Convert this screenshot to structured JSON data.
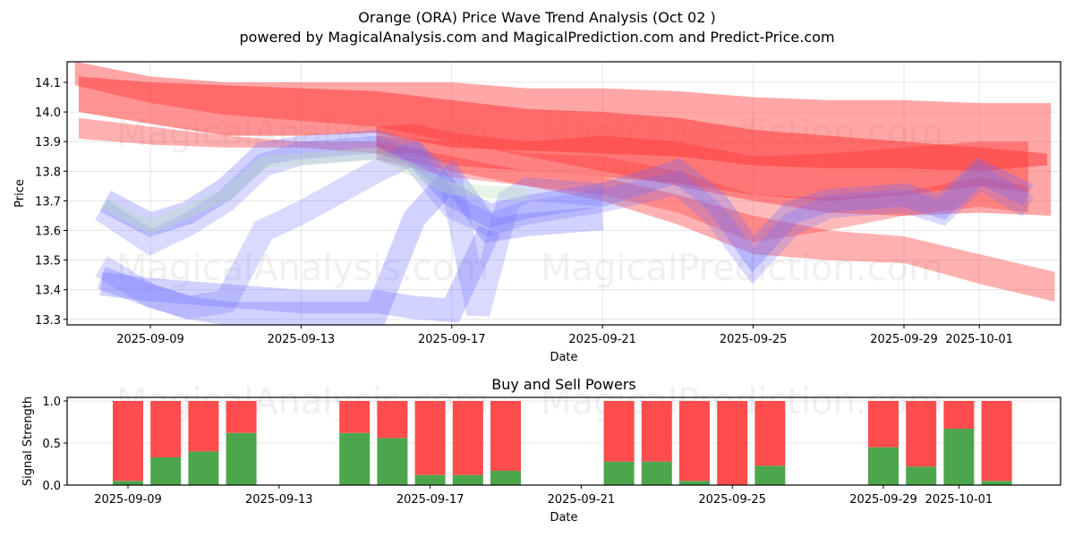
{
  "header": {
    "title": "Orange (ORA) Price Wave Trend Analysis (Oct 02 )",
    "subtitle": "powered by MagicalAnalysis.com and MagicalPrediction.com and Predict-Price.com"
  },
  "watermarks": [
    "MagicalAnalysis.com",
    "MagicalPrediction.com"
  ],
  "chart_data": [
    {
      "type": "area",
      "title": "",
      "xlabel": "Date",
      "ylabel": "Price",
      "x_origin_date": "2025-09-09",
      "x_unit": "days since 2025-09-09",
      "xlim": [
        -2.2,
        24.2
      ],
      "ylim": [
        13.28,
        14.17
      ],
      "grid": true,
      "x_ticks": [
        {
          "day": 0,
          "label": "2025-09-09"
        },
        {
          "day": 4,
          "label": "2025-09-13"
        },
        {
          "day": 8,
          "label": "2025-09-17"
        },
        {
          "day": 12,
          "label": "2025-09-21"
        },
        {
          "day": 16,
          "label": "2025-09-25"
        },
        {
          "day": 20,
          "label": "2025-09-29"
        },
        {
          "day": 22,
          "label": "2025-10-01"
        }
      ],
      "y_ticks": [
        13.3,
        13.4,
        13.5,
        13.6,
        13.7,
        13.8,
        13.9,
        14.0,
        14.1
      ],
      "colors": {
        "sell": "#ff3b3b",
        "buy": "#6b6bff",
        "neutral": "#b8e0b8"
      },
      "series": [
        {
          "name": "sell-wave-1",
          "kind": "sell",
          "opacity": 0.45,
          "x": [
            -2.0,
            0,
            2,
            4,
            6,
            8,
            10,
            12,
            14,
            16,
            18,
            20,
            22,
            23.9
          ],
          "upper": [
            14.17,
            14.12,
            14.1,
            14.1,
            14.1,
            14.1,
            14.08,
            14.08,
            14.07,
            14.05,
            14.04,
            14.04,
            14.03,
            14.03
          ],
          "lower": [
            14.09,
            14.03,
            13.99,
            13.97,
            13.95,
            13.9,
            13.85,
            13.8,
            13.75,
            13.7,
            13.66,
            13.65,
            13.66,
            13.65
          ]
        },
        {
          "name": "sell-wave-2",
          "kind": "sell",
          "opacity": 0.55,
          "x": [
            -1.9,
            0,
            2,
            4,
            6,
            8,
            10,
            12,
            14,
            16,
            18,
            20,
            22,
            23.8
          ],
          "upper": [
            14.12,
            14.1,
            14.09,
            14.08,
            14.07,
            14.04,
            14.01,
            14.0,
            13.98,
            13.94,
            13.92,
            13.9,
            13.88,
            13.86
          ],
          "lower": [
            14.0,
            13.96,
            13.92,
            13.92,
            13.93,
            13.88,
            13.87,
            13.86,
            13.85,
            13.82,
            13.81,
            13.81,
            13.8,
            13.82
          ]
        },
        {
          "name": "sell-wave-3",
          "kind": "sell",
          "opacity": 0.4,
          "x": [
            -1.9,
            0,
            2,
            4,
            6,
            8,
            10,
            12,
            14,
            16,
            18,
            20,
            22,
            24.0
          ],
          "upper": [
            13.98,
            13.95,
            13.92,
            13.9,
            13.9,
            13.85,
            13.8,
            13.78,
            13.72,
            13.65,
            13.6,
            13.58,
            13.52,
            13.46
          ],
          "lower": [
            13.91,
            13.89,
            13.88,
            13.88,
            13.86,
            13.8,
            13.75,
            13.7,
            13.62,
            13.52,
            13.5,
            13.49,
            13.42,
            13.36
          ]
        },
        {
          "name": "sell-wave-4",
          "kind": "sell",
          "opacity": 0.45,
          "x": [
            6,
            7,
            8,
            10,
            12,
            14,
            16,
            18,
            20,
            22,
            23.3
          ],
          "upper": [
            13.95,
            13.96,
            13.93,
            13.9,
            13.92,
            13.9,
            13.85,
            13.86,
            13.88,
            13.9,
            13.9
          ],
          "lower": [
            13.86,
            13.86,
            13.82,
            13.8,
            13.78,
            13.76,
            13.72,
            13.7,
            13.72,
            13.75,
            13.73
          ]
        },
        {
          "name": "sell-wave-5",
          "kind": "sell",
          "opacity": 0.35,
          "x": [
            6,
            8,
            10,
            12,
            14,
            16,
            18,
            20,
            22,
            23.3
          ],
          "upper": [
            13.92,
            13.9,
            13.86,
            13.85,
            13.8,
            13.72,
            13.71,
            13.73,
            13.78,
            13.75
          ],
          "lower": [
            13.84,
            13.78,
            13.75,
            13.72,
            13.66,
            13.56,
            13.6,
            13.65,
            13.68,
            13.66
          ]
        },
        {
          "name": "buy-wave-1",
          "kind": "buy",
          "opacity": 0.3,
          "x": [
            -1.2,
            0,
            1,
            2,
            3,
            4,
            6,
            7,
            8,
            9,
            10,
            12,
            14,
            15,
            16,
            17,
            18,
            20,
            21,
            22,
            23.3
          ],
          "center": [
            13.7,
            13.62,
            13.66,
            13.74,
            13.86,
            13.88,
            13.9,
            13.86,
            13.72,
            13.65,
            13.68,
            13.72,
            13.8,
            13.7,
            13.52,
            13.66,
            13.7,
            13.72,
            13.68,
            13.8,
            13.72
          ]
        },
        {
          "name": "buy-wave-2",
          "kind": "buy",
          "opacity": 0.25,
          "x": [
            -1.3,
            0,
            1,
            2,
            3,
            4,
            6,
            7,
            8,
            9,
            10,
            12,
            14,
            15,
            16,
            17,
            18,
            20,
            21,
            22,
            23.3
          ],
          "center": [
            13.67,
            13.56,
            13.62,
            13.7,
            13.82,
            13.86,
            13.88,
            13.84,
            13.68,
            13.62,
            13.66,
            13.7,
            13.76,
            13.65,
            13.48,
            13.62,
            13.68,
            13.7,
            13.66,
            13.78,
            13.68
          ]
        },
        {
          "name": "buy-wave-3",
          "kind": "buy",
          "opacity": 0.25,
          "x": [
            -1.3,
            0,
            1,
            2,
            3,
            4,
            6,
            7,
            8,
            8.7,
            9.5,
            10,
            12
          ],
          "center": [
            13.48,
            13.38,
            13.34,
            13.36,
            13.6,
            13.66,
            13.8,
            13.86,
            13.76,
            13.32,
            13.7,
            13.74,
            13.72
          ]
        },
        {
          "name": "buy-wave-4",
          "kind": "buy",
          "opacity": 0.3,
          "x": [
            -1.3,
            0,
            1,
            2,
            4,
            6,
            7,
            8,
            9,
            10,
            12
          ],
          "center": [
            13.44,
            13.38,
            13.34,
            13.32,
            13.32,
            13.32,
            13.64,
            13.78,
            13.6,
            13.62,
            13.64
          ]
        },
        {
          "name": "buy-wave-5",
          "kind": "buy",
          "opacity": 0.3,
          "x": [
            -1.3,
            0,
            2,
            4,
            6,
            7,
            8,
            9
          ],
          "center": [
            13.42,
            13.4,
            13.38,
            13.36,
            13.36,
            13.34,
            13.33,
            13.6
          ]
        }
      ]
    },
    {
      "type": "bar",
      "title": "Buy and Sell Powers",
      "xlabel": "Date",
      "ylabel": "Signal Strength",
      "ylim": [
        0,
        1.05
      ],
      "grid": true,
      "y_ticks": [
        "0.0",
        "0.5",
        "1.0"
      ],
      "x_ticks": [
        {
          "day": 0,
          "label": "2025-09-09"
        },
        {
          "day": 4,
          "label": "2025-09-13"
        },
        {
          "day": 8,
          "label": "2025-09-17"
        },
        {
          "day": 12,
          "label": "2025-09-21"
        },
        {
          "day": 16,
          "label": "2025-09-25"
        },
        {
          "day": 20,
          "label": "2025-09-29"
        },
        {
          "day": 22,
          "label": "2025-10-01"
        }
      ],
      "categories": [
        "2025-09-09",
        "2025-09-10",
        "2025-09-11",
        "2025-09-12",
        "2025-09-15",
        "2025-09-16",
        "2025-09-17",
        "2025-09-18",
        "2025-09-19",
        "2025-09-22",
        "2025-09-23",
        "2025-09-24",
        "2025-09-25",
        "2025-09-26",
        "2025-09-29",
        "2025-09-30",
        "2025-10-01",
        "2025-10-02"
      ],
      "days": [
        0,
        1,
        2,
        3,
        6,
        7,
        8,
        9,
        10,
        13,
        14,
        15,
        16,
        17,
        20,
        21,
        22,
        23
      ],
      "series": [
        {
          "name": "Buy",
          "color": "#4ca64c",
          "values": [
            0.05,
            0.33,
            0.4,
            0.62,
            0.62,
            0.56,
            0.12,
            0.12,
            0.17,
            0.28,
            0.28,
            0.05,
            0.0,
            0.23,
            0.45,
            0.22,
            0.67,
            0.05
          ]
        },
        {
          "name": "Sell",
          "color": "#ff4c4c",
          "values": [
            0.95,
            0.67,
            0.6,
            0.38,
            0.38,
            0.44,
            0.88,
            0.88,
            0.83,
            0.72,
            0.72,
            0.95,
            1.0,
            0.77,
            0.55,
            0.78,
            0.33,
            0.95
          ]
        }
      ]
    }
  ]
}
